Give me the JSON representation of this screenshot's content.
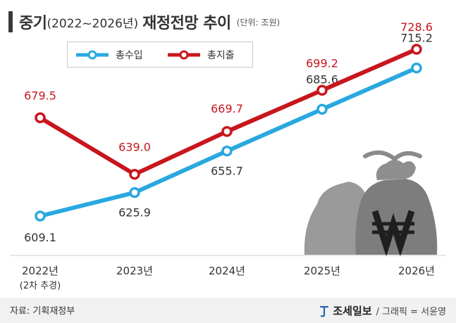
{
  "title": {
    "main": "중기",
    "period": "(2022~2026년)",
    "rest": "재정전망 추이",
    "unit": "(단위: 조원)"
  },
  "chart_data": {
    "type": "line",
    "categories": [
      "2022년",
      "2023년",
      "2024년",
      "2025년",
      "2026년"
    ],
    "category_sublabels": [
      "(2차 추경)",
      "",
      "",
      "",
      ""
    ],
    "series": [
      {
        "name": "총수입",
        "values": [
          609.1,
          625.9,
          655.7,
          685.6,
          715.2
        ],
        "color": "#29a8e0"
      },
      {
        "name": "총지출",
        "values": [
          679.5,
          639.0,
          669.7,
          699.2,
          728.6
        ],
        "color": "#c8161d"
      }
    ],
    "value_labels": {
      "총수입": [
        "609.1",
        "625.9",
        "655.7",
        "685.6",
        "715.2"
      ],
      "총지출": [
        "679.5",
        "639.0",
        "669.7",
        "699.2",
        "728.6"
      ]
    },
    "legend_position": "top-left",
    "grid": false
  },
  "footer": {
    "source": "자료: 기획재정부",
    "logo": "조세일보",
    "credit": "/ 그래픽 = 서윤영"
  }
}
